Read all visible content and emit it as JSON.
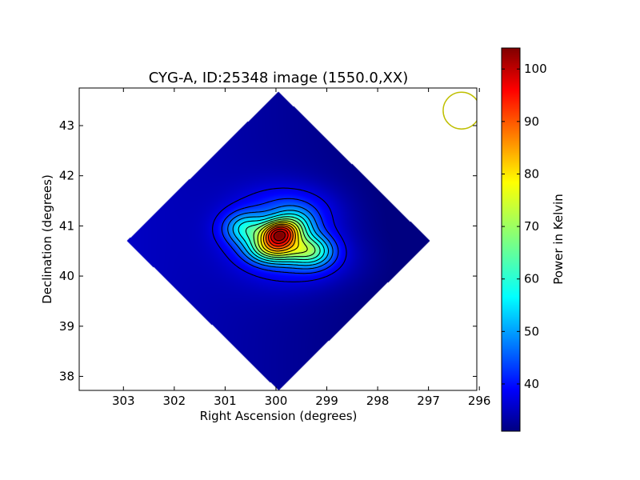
{
  "chart_data": {
    "type": "heatmap",
    "title": "CYG-A, ID:25348 image (1550.0,XX)",
    "xlabel": "Right Ascension (degrees)",
    "ylabel": "Declination (degrees)",
    "xlim": [
      303.87,
      296.05
    ],
    "ylim": [
      37.72,
      43.75
    ],
    "x_ticks": [
      "303",
      "302",
      "301",
      "300",
      "299",
      "298",
      "297",
      "296"
    ],
    "x_tick_values": [
      303,
      302,
      301,
      300,
      299,
      298,
      297,
      296
    ],
    "y_ticks": [
      "38",
      "39",
      "40",
      "41",
      "42",
      "43"
    ],
    "y_tick_values": [
      38,
      39,
      40,
      41,
      42,
      43
    ],
    "colorbar": {
      "label": "Power in Kelvin",
      "range": [
        31,
        104
      ],
      "ticks": [
        "40",
        "50",
        "60",
        "70",
        "80",
        "90",
        "100"
      ],
      "tick_values": [
        40,
        50,
        60,
        70,
        80,
        90,
        100
      ],
      "colormap": "jet"
    },
    "peak": {
      "ra": 299.95,
      "dec": 40.85,
      "value": 104
    },
    "background_level": 33,
    "footprint": "diamond-shaped coverage, white outside",
    "beam_marker": {
      "ra": 296.35,
      "dec": 43.3,
      "color": "#bfbf00",
      "shape": "circle"
    },
    "contours": {
      "count": 14,
      "color": "#000000"
    },
    "grid": false
  },
  "colors": {
    "frame": "#000000",
    "contour": "#000000",
    "beam": "#bfbf00",
    "background": "#ffffff"
  }
}
